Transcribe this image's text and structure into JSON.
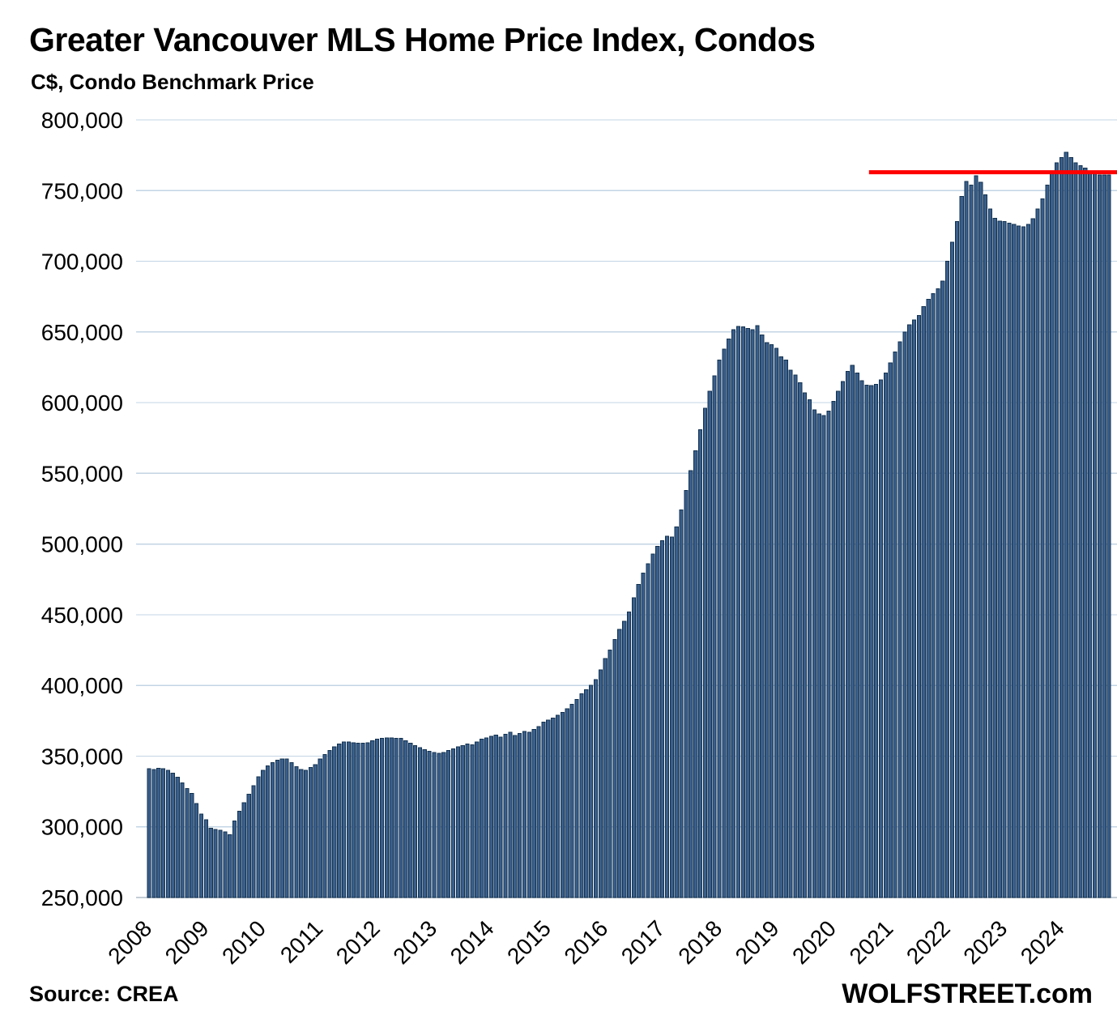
{
  "header": {
    "title": "Greater Vancouver MLS Home Price Index, Condos",
    "subtitle": "C$, Condo Benchmark Price"
  },
  "footer": {
    "source": "Source: CREA",
    "brand": "WOLFSTREET.com"
  },
  "colors": {
    "bar_fill": "#3A5F8C",
    "bar_border": "#12314F",
    "reference_line": "#FF0000",
    "gridline": "#C3D4E4",
    "baseline": "#C4CDD5",
    "text": "#000000"
  },
  "chart_data": {
    "type": "bar",
    "title": "Greater Vancouver MLS Home Price Index, Condos",
    "subtitle": "C$, Condo Benchmark Price",
    "ylabel": "C$, Condo Benchmark Price",
    "xlabel": "",
    "unit": "C$",
    "frequency": "monthly",
    "start_month": "2008-01",
    "end_month": "2024-11",
    "grid": "horizontal",
    "legend": "none",
    "ylim": [
      250000,
      800000
    ],
    "y_ticks": [
      250000,
      300000,
      350000,
      400000,
      450000,
      500000,
      550000,
      600000,
      650000,
      700000,
      750000,
      800000
    ],
    "x_tick_labels": [
      "2008",
      "2009",
      "2010",
      "2011",
      "2012",
      "2013",
      "2014",
      "2015",
      "2016",
      "2017",
      "2018",
      "2019",
      "2020",
      "2021",
      "2022",
      "2023",
      "2024"
    ],
    "reference_line": {
      "value": 763000,
      "start_month_index": 152,
      "label": ""
    },
    "values": [
      341000,
      340500,
      341500,
      341000,
      340000,
      338000,
      335000,
      331000,
      327000,
      323500,
      316500,
      309000,
      305000,
      299000,
      298000,
      297500,
      296500,
      294500,
      304000,
      311000,
      317000,
      323000,
      329000,
      335500,
      340000,
      343000,
      345500,
      347000,
      348000,
      348000,
      345500,
      342500,
      340500,
      340000,
      342000,
      344000,
      348000,
      351000,
      354000,
      356500,
      358500,
      360000,
      360000,
      359500,
      359000,
      359000,
      359500,
      361000,
      362000,
      362500,
      363000,
      363000,
      362500,
      362500,
      361000,
      359000,
      357500,
      356000,
      354500,
      353500,
      352500,
      352000,
      352500,
      354000,
      355000,
      356500,
      357500,
      358500,
      358000,
      360000,
      362000,
      363000,
      364000,
      365000,
      363500,
      365500,
      367000,
      364500,
      366000,
      367500,
      367000,
      369000,
      371000,
      374000,
      375500,
      377000,
      379000,
      381000,
      383500,
      386500,
      390000,
      394000,
      397000,
      400000,
      404000,
      411000,
      419000,
      425000,
      432500,
      439500,
      445500,
      452000,
      462000,
      471500,
      479500,
      486000,
      493000,
      498500,
      502500,
      505500,
      505000,
      512000,
      524000,
      538000,
      552000,
      566000,
      581000,
      596000,
      608000,
      619000,
      630000,
      638000,
      645000,
      651500,
      654000,
      653500,
      652500,
      651500,
      654500,
      648000,
      642500,
      641000,
      638500,
      632500,
      630000,
      623000,
      619500,
      614000,
      607000,
      602000,
      595000,
      592000,
      591000,
      594000,
      601000,
      608000,
      615000,
      622000,
      626500,
      621000,
      615500,
      612500,
      612000,
      613000,
      616000,
      621000,
      628000,
      636000,
      643000,
      650000,
      655000,
      658500,
      661500,
      668000,
      673000,
      677000,
      680500,
      686000,
      700000,
      713500,
      728000,
      746000,
      756500,
      754000,
      760500,
      756000,
      747000,
      737000,
      730500,
      728500,
      728000,
      727000,
      726000,
      725000,
      724500,
      726000,
      730000,
      737000,
      744000,
      754000,
      763000,
      769500,
      773500,
      777000,
      773500,
      769500,
      767500,
      766000,
      764000,
      762000,
      761000,
      761000,
      761000
    ]
  }
}
